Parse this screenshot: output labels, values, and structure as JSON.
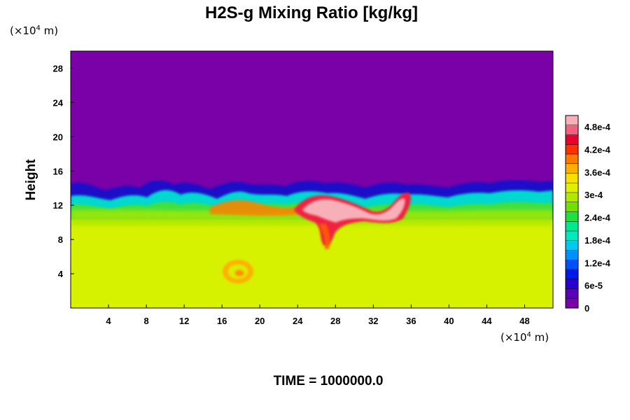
{
  "chart_data": {
    "type": "heatmap",
    "title": "H2S-g Mixing Ratio [kg/kg]",
    "ylabel": "Height",
    "xlabel": "",
    "x_unit_prefix": "(×10",
    "x_unit_exp": "4",
    "x_unit_suffix": " m)",
    "y_unit_prefix": "(×10",
    "y_unit_exp": "4",
    "y_unit_suffix": " m)",
    "xlim": [
      0,
      51
    ],
    "ylim": [
      0,
      30
    ],
    "x_ticks": [
      4,
      8,
      12,
      16,
      20,
      24,
      28,
      32,
      36,
      40,
      44,
      48
    ],
    "x_tick_labels": [
      "4",
      "8",
      "12",
      "16",
      "20",
      "24",
      "28",
      "32",
      "36",
      "40",
      "44",
      "48"
    ],
    "y_ticks": [
      4,
      8,
      12,
      16,
      20,
      24,
      28
    ],
    "y_tick_labels": [
      "4",
      "8",
      "12",
      "16",
      "20",
      "24",
      "28"
    ],
    "colorbar": {
      "vmin": 0,
      "vmax": 0.00051,
      "tick_values": [
        0,
        6e-05,
        0.00012,
        0.00018,
        0.00024,
        0.0003,
        0.00036,
        0.00042,
        0.00048
      ],
      "tick_labels": [
        "0",
        "6e-5",
        "1.2e-4",
        "1.8e-4",
        "2.4e-4",
        "3e-4",
        "3.6e-4",
        "4.2e-4",
        "4.8e-4"
      ],
      "colors": [
        "#7a00a8",
        "#5a00b8",
        "#2800d0",
        "#0018e8",
        "#0050ff",
        "#0090ff",
        "#00c8f0",
        "#00e8c0",
        "#00e890",
        "#20e040",
        "#70e000",
        "#b0e800",
        "#e0f000",
        "#f8e000",
        "#ffb000",
        "#ff7800",
        "#ff3000",
        "#e80030",
        "#f06080",
        "#f8b0b8"
      ]
    },
    "field_description_values": {
      "upper_region_value": 0,
      "lower_region_value": 0.00035,
      "interface_height": 11,
      "plume_peak_value": 0.00051
    },
    "footer": "TIME = 1000000.0"
  }
}
